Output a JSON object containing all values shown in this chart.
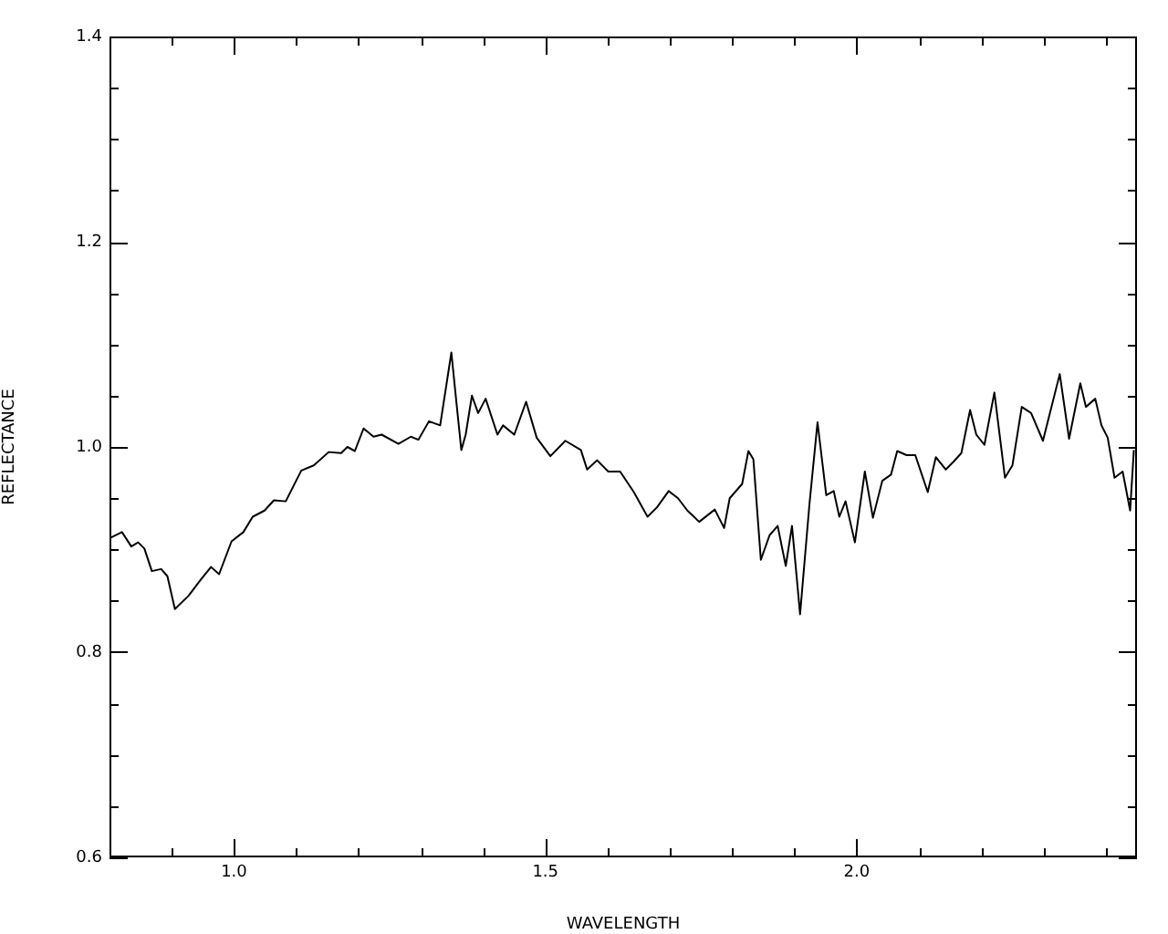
{
  "chart_data": {
    "type": "line",
    "xlabel": "WAVELENGTH",
    "ylabel": "REFLECTANCE",
    "xlim": [
      0.8,
      2.45
    ],
    "ylim": [
      0.6,
      1.4
    ],
    "xticks": [
      {
        "value": 0.9,
        "label": null
      },
      {
        "value": 1.0,
        "label": "1.0"
      },
      {
        "value": 1.1,
        "label": null
      },
      {
        "value": 1.2,
        "label": null
      },
      {
        "value": 1.3,
        "label": null
      },
      {
        "value": 1.4,
        "label": null
      },
      {
        "value": 1.5,
        "label": "1.5"
      },
      {
        "value": 1.6,
        "label": null
      },
      {
        "value": 1.7,
        "label": null
      },
      {
        "value": 1.8,
        "label": null
      },
      {
        "value": 1.9,
        "label": null
      },
      {
        "value": 2.0,
        "label": "2.0"
      },
      {
        "value": 2.1,
        "label": null
      },
      {
        "value": 2.2,
        "label": null
      },
      {
        "value": 2.3,
        "label": null
      },
      {
        "value": 2.4,
        "label": null
      }
    ],
    "yticks": [
      {
        "value": 0.6,
        "label": "0.6"
      },
      {
        "value": 0.65,
        "label": null
      },
      {
        "value": 0.7,
        "label": null
      },
      {
        "value": 0.75,
        "label": null
      },
      {
        "value": 0.8,
        "label": "0.8"
      },
      {
        "value": 0.85,
        "label": null
      },
      {
        "value": 0.9,
        "label": null
      },
      {
        "value": 0.95,
        "label": null
      },
      {
        "value": 1.0,
        "label": "1.0"
      },
      {
        "value": 1.05,
        "label": null
      },
      {
        "value": 1.1,
        "label": null
      },
      {
        "value": 1.15,
        "label": null
      },
      {
        "value": 1.2,
        "label": "1.2"
      },
      {
        "value": 1.25,
        "label": null
      },
      {
        "value": 1.3,
        "label": null
      },
      {
        "value": 1.35,
        "label": null
      },
      {
        "value": 1.4,
        "label": "1.4"
      }
    ],
    "grid": false,
    "legend": false,
    "marker": "none",
    "line_style": "solid",
    "series": [
      {
        "color": "#000000",
        "x": [
          0.8,
          0.82,
          0.835,
          0.846,
          0.856,
          0.868,
          0.883,
          0.893,
          0.905,
          0.927,
          0.947,
          0.963,
          0.976,
          0.996,
          1.015,
          1.03,
          1.049,
          1.064,
          1.083,
          1.108,
          1.128,
          1.152,
          1.172,
          1.182,
          1.194,
          1.208,
          1.224,
          1.237,
          1.264,
          1.284,
          1.296,
          1.313,
          1.331,
          1.349,
          1.357,
          1.365,
          1.372,
          1.382,
          1.392,
          1.404,
          1.423,
          1.432,
          1.45,
          1.469,
          1.486,
          1.508,
          1.532,
          1.557,
          1.567,
          1.583,
          1.601,
          1.62,
          1.642,
          1.664,
          1.679,
          1.698,
          1.713,
          1.728,
          1.747,
          1.772,
          1.787,
          1.796,
          1.816,
          1.826,
          1.834,
          1.846,
          1.86,
          1.873,
          1.886,
          1.896,
          1.909,
          1.924,
          1.937,
          1.951,
          1.963,
          1.972,
          1.982,
          1.997,
          2.013,
          2.026,
          2.041,
          2.055,
          2.065,
          2.08,
          2.094,
          2.114,
          2.127,
          2.143,
          2.156,
          2.168,
          2.182,
          2.192,
          2.205,
          2.221,
          2.238,
          2.25,
          2.265,
          2.28,
          2.299,
          2.326,
          2.341,
          2.359,
          2.368,
          2.383,
          2.393,
          2.403,
          2.414,
          2.427,
          2.439,
          2.445
        ],
        "values": [
          0.911,
          0.917,
          0.903,
          0.907,
          0.901,
          0.879,
          0.881,
          0.874,
          0.842,
          0.855,
          0.871,
          0.883,
          0.876,
          0.908,
          0.917,
          0.932,
          0.938,
          0.948,
          0.947,
          0.977,
          0.982,
          0.995,
          0.994,
          1.0,
          0.996,
          1.018,
          1.01,
          1.012,
          1.003,
          1.01,
          1.007,
          1.025,
          1.021,
          1.092,
          1.044,
          0.997,
          1.012,
          1.05,
          1.033,
          1.047,
          1.012,
          1.021,
          1.012,
          1.044,
          1.009,
          0.991,
          1.006,
          0.997,
          0.978,
          0.987,
          0.976,
          0.976,
          0.956,
          0.932,
          0.941,
          0.957,
          0.95,
          0.938,
          0.927,
          0.939,
          0.921,
          0.95,
          0.964,
          0.996,
          0.988,
          0.89,
          0.914,
          0.923,
          0.884,
          0.923,
          0.837,
          0.944,
          1.024,
          0.953,
          0.957,
          0.932,
          0.947,
          0.907,
          0.976,
          0.931,
          0.967,
          0.973,
          0.996,
          0.992,
          0.992,
          0.956,
          0.99,
          0.978,
          0.986,
          0.994,
          1.036,
          1.012,
          1.002,
          1.053,
          0.97,
          0.982,
          1.039,
          1.033,
          1.006,
          1.071,
          1.008,
          1.062,
          1.039,
          1.047,
          1.021,
          1.009,
          0.97,
          0.976,
          0.938,
          0.997
        ]
      }
    ]
  }
}
